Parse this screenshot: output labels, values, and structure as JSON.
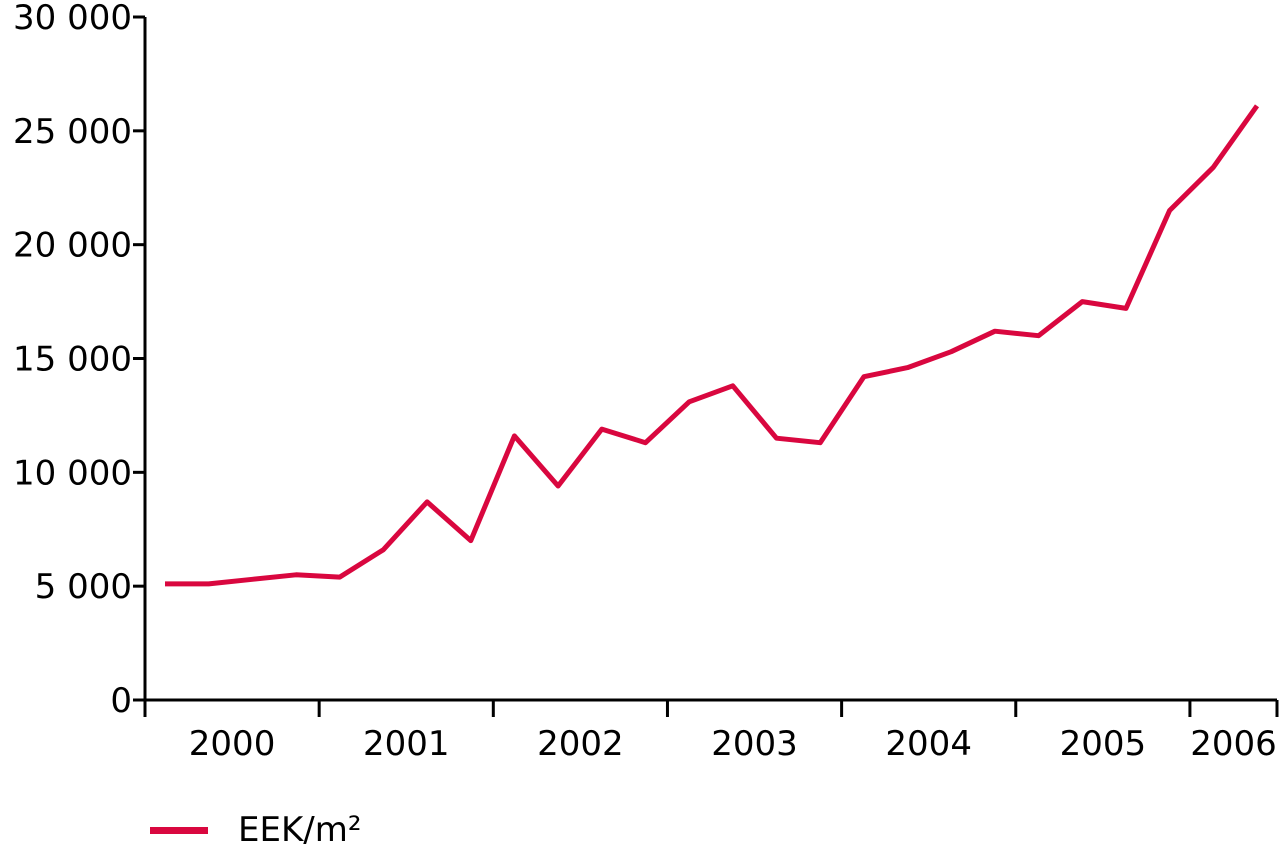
{
  "chart_data": {
    "type": "line",
    "title": "",
    "xlabel": "",
    "ylabel": "",
    "ylim": [
      0,
      30000
    ],
    "y_ticks": [
      0,
      5000,
      10000,
      15000,
      20000,
      25000,
      30000
    ],
    "y_tick_labels": [
      "0",
      "5 000",
      "10 000",
      "15 000",
      "20 000",
      "25 000",
      "30 000"
    ],
    "year_labels": [
      "2000",
      "2001",
      "2002",
      "2003",
      "2004",
      "2005",
      "2006"
    ],
    "grid": false,
    "legend_position": "bottom-left",
    "color": "#d9073f",
    "series": [
      {
        "name": "EEK/m²",
        "values": [
          5100,
          5100,
          5300,
          5500,
          5400,
          6600,
          8700,
          7000,
          11600,
          9400,
          11900,
          11300,
          13100,
          13800,
          11500,
          11300,
          14200,
          14600,
          15300,
          16200,
          16000,
          17500,
          17200,
          21500,
          23400,
          26100
        ]
      }
    ]
  }
}
